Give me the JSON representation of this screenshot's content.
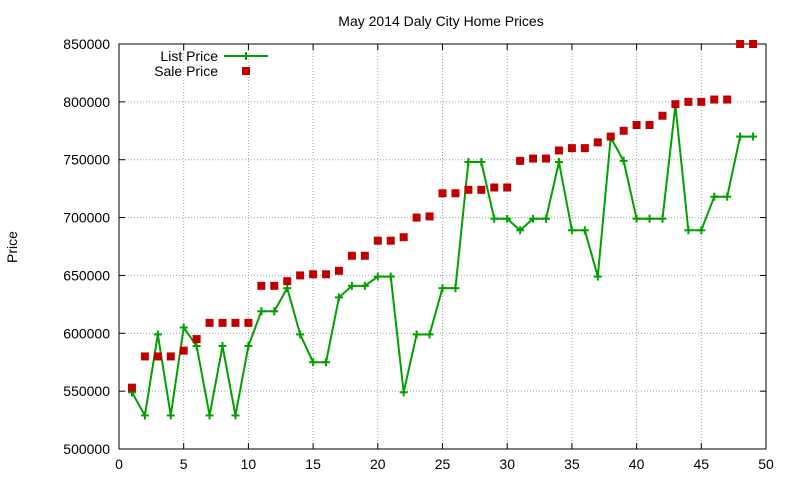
{
  "chart_data": {
    "type": "line",
    "title": "May 2014 Daly City Home Prices",
    "xlabel": "",
    "ylabel": "Price",
    "xlim": [
      0,
      50
    ],
    "ylim": [
      500000,
      850000
    ],
    "x_ticks": [
      0,
      5,
      10,
      15,
      20,
      25,
      30,
      35,
      40,
      45,
      50
    ],
    "y_ticks": [
      500000,
      550000,
      600000,
      650000,
      700000,
      750000,
      800000,
      850000
    ],
    "grid": true,
    "legend_position": "top-left",
    "series": [
      {
        "name": "List Price",
        "style": "line-with-plus-markers",
        "color": "#00a000",
        "x": [
          1,
          2,
          3,
          4,
          5,
          6,
          7,
          8,
          9,
          10,
          11,
          12,
          13,
          14,
          15,
          16,
          17,
          18,
          19,
          20,
          21,
          22,
          23,
          24,
          25,
          26,
          27,
          28,
          29,
          30,
          31,
          32,
          33,
          34,
          35,
          36,
          37,
          38,
          39,
          40,
          41,
          42,
          43,
          44,
          45,
          46,
          47,
          48,
          49
        ],
        "values": [
          549000,
          529000,
          599000,
          529000,
          605000,
          589000,
          529000,
          589000,
          529000,
          589000,
          619000,
          619000,
          639000,
          599000,
          575000,
          575000,
          631000,
          641000,
          641000,
          649000,
          649000,
          549000,
          599000,
          599000,
          639000,
          639000,
          748000,
          748000,
          699000,
          699000,
          689000,
          699000,
          699000,
          748000,
          689000,
          689000,
          649000,
          769000,
          749000,
          699000,
          699000,
          699000,
          797000,
          689000,
          689000,
          718000,
          718000,
          770000,
          770000
        ]
      },
      {
        "name": "Sale Price",
        "style": "square-markers",
        "color": "#c00000",
        "x": [
          1,
          2,
          3,
          4,
          5,
          6,
          7,
          8,
          9,
          10,
          11,
          12,
          13,
          14,
          15,
          16,
          17,
          18,
          19,
          20,
          21,
          22,
          23,
          24,
          25,
          26,
          27,
          28,
          29,
          30,
          31,
          32,
          33,
          34,
          35,
          36,
          37,
          38,
          39,
          40,
          41,
          42,
          43,
          44,
          45,
          46,
          47,
          48,
          49
        ],
        "values": [
          553000,
          580000,
          580000,
          580000,
          585000,
          595000,
          609000,
          609000,
          609000,
          609000,
          641000,
          641000,
          645000,
          650000,
          651000,
          651000,
          654000,
          667000,
          667000,
          680000,
          680000,
          683000,
          700000,
          701000,
          721000,
          721000,
          724000,
          724000,
          726000,
          726000,
          749000,
          751000,
          751000,
          758000,
          760000,
          760000,
          765000,
          770000,
          775000,
          780000,
          780000,
          788000,
          798000,
          800000,
          800000,
          802000,
          802000,
          850000,
          850000
        ]
      }
    ]
  }
}
